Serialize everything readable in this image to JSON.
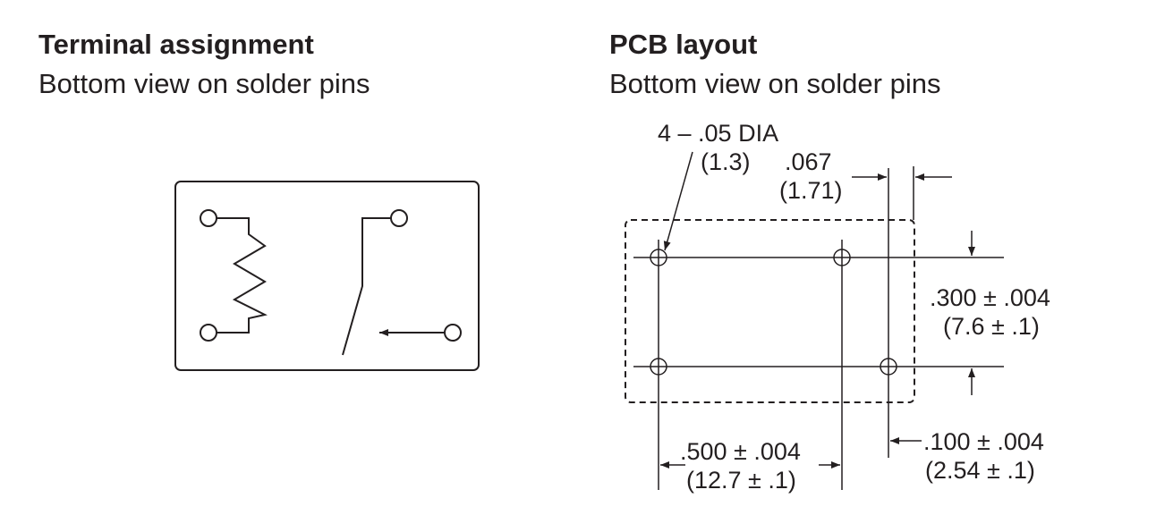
{
  "terminal": {
    "title": "Terminal assignment",
    "subtitle": "Bottom view on solder pins"
  },
  "pcb": {
    "title": "PCB layout",
    "subtitle": "Bottom view on solder pins",
    "hole_dia_label": "4 – .05 DIA",
    "hole_dia_metric": "(1.3)",
    "offset_label": ".067",
    "offset_metric": "(1.71)",
    "row_spacing_label": ".300 ± .004",
    "row_spacing_metric": "(7.6 ± .1)",
    "col_spacing_label": ".500 ± .004",
    "col_spacing_metric": "(12.7 ± .1)",
    "pitch_label": ".100 ± .004",
    "pitch_metric": "(2.54 ± .1)"
  },
  "colors": {
    "ink": "#231f20",
    "background": "#ffffff"
  }
}
